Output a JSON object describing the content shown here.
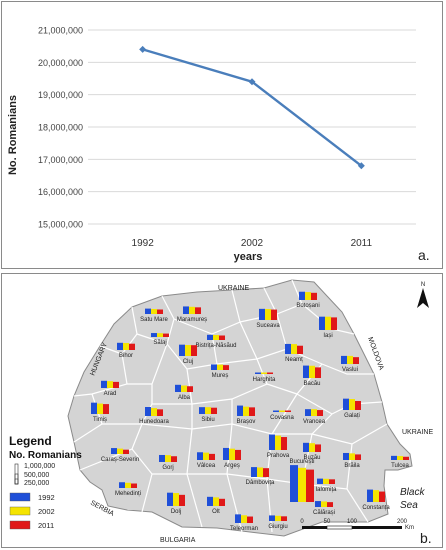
{
  "chart_data": [
    {
      "type": "line",
      "panel_label": "a.",
      "xlabel": "years",
      "ylabel": "No. Romanians",
      "categories": [
        "1992",
        "2002",
        "2011"
      ],
      "series": [
        {
          "values": [
            20400000,
            19400000,
            16800000
          ],
          "color": "#4a7ebb"
        }
      ],
      "yticks": [
        "15,000,000",
        "16,000,000",
        "17,000,000",
        "18,000,000",
        "19,000,000",
        "20,000,000",
        "21,000,000"
      ],
      "ylim": [
        15000000,
        21000000
      ],
      "grid": true
    },
    {
      "type": "map",
      "panel_label": "b.",
      "legend": {
        "title": "Legend",
        "subtitle": "No. Romanians",
        "sizes": [
          "1,000,000",
          "500,000",
          "250,000"
        ],
        "entries": [
          {
            "label": "1992",
            "color": "#1f4fd8"
          },
          {
            "label": "2002",
            "color": "#f5e400"
          },
          {
            "label": "2011",
            "color": "#e01818"
          }
        ]
      },
      "neighbors": [
        "UKRAINE",
        "HUNGARY",
        "MOLDOVA",
        "UKRAINE",
        "SERBIA",
        "BULGARIA"
      ],
      "sea": [
        "Black",
        "Sea"
      ],
      "north": "N",
      "scale": {
        "ticks": [
          "0",
          "50",
          "100",
          "200"
        ],
        "unit": "Km"
      },
      "counties": [
        {
          "name": "Botoșani",
          "v": [
            0.46,
            0.44,
            0.4
          ]
        },
        {
          "name": "Satu Mare",
          "v": [
            0.3,
            0.28,
            0.25
          ]
        },
        {
          "name": "Maramureș",
          "v": [
            0.42,
            0.4,
            0.37
          ]
        },
        {
          "name": "Suceava",
          "v": [
            0.62,
            0.61,
            0.58
          ]
        },
        {
          "name": "Iași",
          "v": [
            0.74,
            0.74,
            0.7
          ]
        },
        {
          "name": "Sălaj",
          "v": [
            0.22,
            0.21,
            0.19
          ]
        },
        {
          "name": "Bistrița-Năsăud",
          "v": [
            0.29,
            0.28,
            0.25
          ]
        },
        {
          "name": "Bihor",
          "v": [
            0.4,
            0.39,
            0.35
          ]
        },
        {
          "name": "Cluj",
          "v": [
            0.63,
            0.61,
            0.6
          ]
        },
        {
          "name": "Neamț",
          "v": [
            0.56,
            0.55,
            0.46
          ]
        },
        {
          "name": "Vaslui",
          "v": [
            0.45,
            0.45,
            0.38
          ]
        },
        {
          "name": "Mureș",
          "v": [
            0.31,
            0.3,
            0.27
          ]
        },
        {
          "name": "Harghita",
          "v": [
            0.05,
            0.05,
            0.04
          ]
        },
        {
          "name": "Bacău",
          "v": [
            0.69,
            0.68,
            0.59
          ]
        },
        {
          "name": "Arad",
          "v": [
            0.4,
            0.38,
            0.34
          ]
        },
        {
          "name": "Alba",
          "v": [
            0.4,
            0.36,
            0.32
          ]
        },
        {
          "name": "Timiș",
          "v": [
            0.63,
            0.58,
            0.55
          ]
        },
        {
          "name": "Hunedoara",
          "v": [
            0.5,
            0.44,
            0.37
          ]
        },
        {
          "name": "Sibiu",
          "v": [
            0.38,
            0.38,
            0.35
          ]
        },
        {
          "name": "Brașov",
          "v": [
            0.58,
            0.52,
            0.48
          ]
        },
        {
          "name": "Covasna",
          "v": [
            0.05,
            0.05,
            0.05
          ]
        },
        {
          "name": "Vrancea",
          "v": [
            0.38,
            0.38,
            0.33
          ]
        },
        {
          "name": "Galați",
          "v": [
            0.63,
            0.61,
            0.5
          ]
        },
        {
          "name": "Caraș-Severin",
          "v": [
            0.33,
            0.3,
            0.24
          ]
        },
        {
          "name": "Gorj",
          "v": [
            0.39,
            0.38,
            0.32
          ]
        },
        {
          "name": "Vâlcea",
          "v": [
            0.43,
            0.41,
            0.34
          ]
        },
        {
          "name": "Argeș",
          "v": [
            0.67,
            0.63,
            0.56
          ]
        },
        {
          "name": "Prahova",
          "v": [
            0.86,
            0.8,
            0.72
          ]
        },
        {
          "name": "Buzău",
          "v": [
            0.51,
            0.49,
            0.42
          ]
        },
        {
          "name": "Brăila",
          "v": [
            0.39,
            0.37,
            0.31
          ]
        },
        {
          "name": "Tulcea",
          "v": [
            0.23,
            0.22,
            0.18
          ]
        },
        {
          "name": "Mehedinți",
          "v": [
            0.32,
            0.29,
            0.25
          ]
        },
        {
          "name": "Dâmbovița",
          "v": [
            0.55,
            0.53,
            0.49
          ]
        },
        {
          "name": "Ilfov",
          "v": [
            0.28,
            0.29,
            0.38
          ]
        },
        {
          "name": "Ialomița",
          "v": [
            0.3,
            0.29,
            0.26
          ]
        },
        {
          "name": "București",
          "v": [
            2.05,
            1.9,
            1.8
          ]
        },
        {
          "name": "Dolj",
          "v": [
            0.74,
            0.72,
            0.62
          ]
        },
        {
          "name": "Olt",
          "v": [
            0.51,
            0.48,
            0.4
          ]
        },
        {
          "name": "Călărași",
          "v": [
            0.33,
            0.31,
            0.27
          ]
        },
        {
          "name": "Constanța",
          "v": [
            0.69,
            0.66,
            0.58
          ]
        },
        {
          "name": "Teleorman",
          "v": [
            0.48,
            0.43,
            0.36
          ]
        },
        {
          "name": "Giurgiu",
          "v": [
            0.31,
            0.29,
            0.26
          ]
        }
      ]
    }
  ]
}
